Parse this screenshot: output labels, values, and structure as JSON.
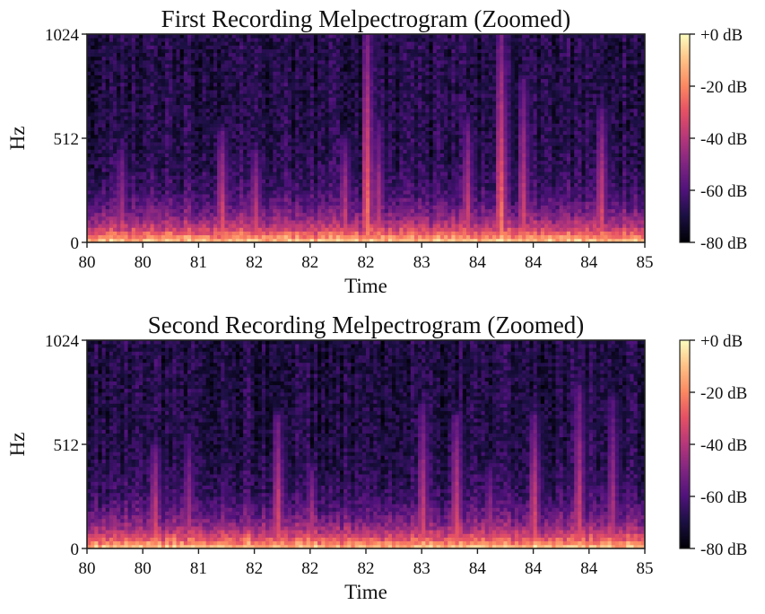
{
  "chart_data": [
    {
      "type": "heatmap",
      "title": "First Recording Melpectrogram (Zoomed)",
      "xlabel": "Time",
      "ylabel": "Hz",
      "xlim": [
        80,
        85
      ],
      "ylim": [
        0,
        1024
      ],
      "x_tick_labels": [
        "80",
        "80",
        "81",
        "82",
        "82",
        "82",
        "83",
        "84",
        "84",
        "84",
        "85"
      ],
      "y_ticks": [
        0,
        512,
        1024
      ],
      "y_tick_labels": [
        "0",
        "512",
        "1024"
      ],
      "colorbar": {
        "range_db": [
          -80,
          0
        ],
        "tick_labels": [
          "+0 dB",
          "-20 dB",
          "-40 dB",
          "-60 dB",
          "-80 dB"
        ],
        "colormap": "magma"
      },
      "onsets": [
        80.3,
        81.2,
        81.5,
        82.3,
        82.5,
        82.6,
        83.4,
        83.7,
        83.9,
        84.6
      ],
      "onset_strengths": [
        0.75,
        0.85,
        0.8,
        0.8,
        0.95,
        0.75,
        0.8,
        0.95,
        0.8,
        0.85
      ],
      "onset_reach_hz": [
        450,
        550,
        450,
        500,
        1024,
        600,
        600,
        1024,
        800,
        650
      ]
    },
    {
      "type": "heatmap",
      "title": "Second Recording Melpectrogram (Zoomed)",
      "xlabel": "Time",
      "ylabel": "Hz",
      "xlim": [
        80,
        85
      ],
      "ylim": [
        0,
        1024
      ],
      "x_tick_labels": [
        "80",
        "80",
        "81",
        "82",
        "82",
        "82",
        "83",
        "84",
        "84",
        "84",
        "85"
      ],
      "y_ticks": [
        0,
        512,
        1024
      ],
      "y_tick_labels": [
        "0",
        "512",
        "1024"
      ],
      "colorbar": {
        "range_db": [
          -80,
          0
        ],
        "tick_labels": [
          "+0 dB",
          "-20 dB",
          "-40 dB",
          "-60 dB",
          "-80 dB"
        ],
        "colormap": "magma"
      },
      "onsets": [
        80.6,
        80.9,
        81.7,
        82.0,
        83.0,
        83.3,
        83.6,
        84.0,
        84.4,
        84.7
      ],
      "onset_strengths": [
        0.85,
        0.7,
        0.85,
        0.75,
        0.8,
        0.85,
        0.7,
        0.85,
        0.8,
        0.7
      ],
      "onset_reach_hz": [
        500,
        550,
        650,
        400,
        700,
        650,
        400,
        650,
        800,
        750
      ]
    }
  ]
}
